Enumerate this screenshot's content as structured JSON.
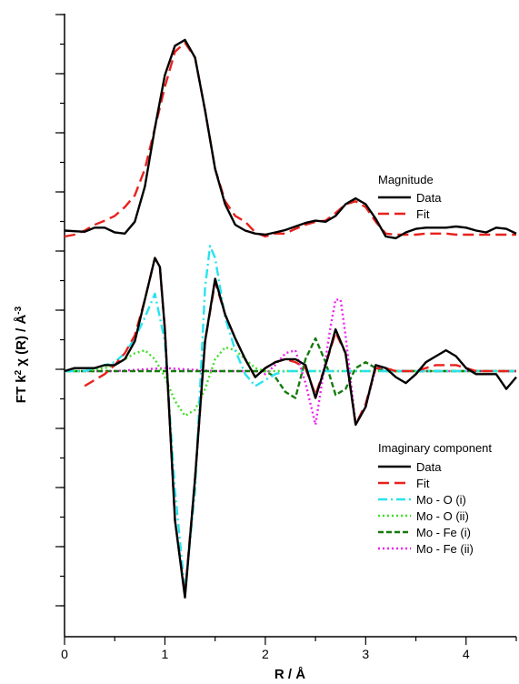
{
  "chart_data": {
    "type": "line",
    "xlabel": "R / Å",
    "ylabel_parts": {
      "main": "FT k",
      "sup": "2",
      "rest": " χ  (R) / Å",
      "sup2": "-3"
    },
    "xlim": [
      0,
      4.5
    ],
    "xticks": [
      0,
      1,
      2,
      3,
      4
    ],
    "y_has_tick_labels": false,
    "magnitude": {
      "title": "Magnitude",
      "series": [
        {
          "name": "Data",
          "color": "#000000",
          "dash": "solid",
          "x": [
            0,
            0.1,
            0.2,
            0.3,
            0.4,
            0.5,
            0.6,
            0.7,
            0.8,
            0.9,
            1.0,
            1.1,
            1.2,
            1.3,
            1.4,
            1.5,
            1.6,
            1.7,
            1.8,
            1.9,
            2.0,
            2.1,
            2.2,
            2.3,
            2.4,
            2.5,
            2.6,
            2.7,
            2.8,
            2.9,
            3.0,
            3.1,
            3.2,
            3.3,
            3.4,
            3.5,
            3.6,
            3.7,
            3.8,
            3.9,
            4.0,
            4.1,
            4.2,
            4.3,
            4.4,
            4.5
          ],
          "y": [
            0.55,
            0.54,
            0.53,
            0.6,
            0.6,
            0.52,
            0.5,
            0.7,
            1.3,
            2.3,
            3.2,
            3.7,
            3.8,
            3.5,
            2.6,
            1.6,
            1.0,
            0.65,
            0.55,
            0.5,
            0.48,
            0.52,
            0.56,
            0.62,
            0.68,
            0.72,
            0.7,
            0.8,
            1.0,
            1.1,
            1.0,
            0.75,
            0.45,
            0.42,
            0.52,
            0.58,
            0.6,
            0.6,
            0.6,
            0.62,
            0.6,
            0.55,
            0.52,
            0.6,
            0.58,
            0.5
          ]
        },
        {
          "name": "Fit",
          "color": "#e8211d",
          "dash": "long",
          "x": [
            0,
            0.1,
            0.2,
            0.3,
            0.4,
            0.5,
            0.6,
            0.7,
            0.8,
            0.9,
            1.0,
            1.1,
            1.2,
            1.3,
            1.4,
            1.5,
            1.6,
            1.7,
            1.8,
            1.9,
            2.0,
            2.1,
            2.2,
            2.3,
            2.4,
            2.5,
            2.6,
            2.7,
            2.8,
            2.9,
            3.0,
            3.1,
            3.2,
            3.3,
            3.4,
            3.5,
            3.6,
            3.7,
            3.8,
            3.9,
            4.0,
            4.1,
            4.2,
            4.3,
            4.4,
            4.5
          ],
          "y": [
            0.45,
            0.48,
            0.55,
            0.65,
            0.72,
            0.8,
            0.95,
            1.15,
            1.6,
            2.3,
            3.0,
            3.6,
            3.75,
            3.5,
            2.6,
            1.6,
            1.05,
            0.8,
            0.7,
            0.52,
            0.45,
            0.5,
            0.5,
            0.58,
            0.65,
            0.7,
            0.72,
            0.85,
            1.0,
            1.05,
            0.95,
            0.7,
            0.5,
            0.48,
            0.48,
            0.48,
            0.5,
            0.5,
            0.5,
            0.48,
            0.48,
            0.48,
            0.48,
            0.48,
            0.48,
            0.48
          ]
        }
      ]
    },
    "imaginary": {
      "title": "Imaginary component",
      "series": [
        {
          "name": "Data",
          "color": "#000000",
          "dash": "solid",
          "x": [
            0,
            0.1,
            0.2,
            0.3,
            0.4,
            0.5,
            0.6,
            0.7,
            0.8,
            0.9,
            0.95,
            1.0,
            1.1,
            1.2,
            1.3,
            1.4,
            1.5,
            1.6,
            1.7,
            1.8,
            1.9,
            2.0,
            2.1,
            2.2,
            2.3,
            2.4,
            2.5,
            2.6,
            2.7,
            2.8,
            2.9,
            3.0,
            3.1,
            3.2,
            3.3,
            3.4,
            3.5,
            3.6,
            3.7,
            3.8,
            3.9,
            4.0,
            4.1,
            4.2,
            4.3,
            4.4,
            4.5
          ],
          "y": [
            0,
            0.05,
            0.05,
            0.05,
            0.1,
            0.1,
            0.2,
            0.5,
            1.2,
            1.9,
            1.75,
            0.7,
            -2.5,
            -3.8,
            -1.8,
            0.5,
            1.55,
            0.95,
            0.55,
            0.2,
            -0.1,
            0.05,
            0.15,
            0.2,
            0.2,
            0.1,
            -0.45,
            0.1,
            0.7,
            0.3,
            -0.9,
            -0.6,
            0.1,
            0.05,
            -0.1,
            -0.2,
            -0.05,
            0.15,
            0.25,
            0.35,
            0.25,
            0.05,
            -0.05,
            -0.05,
            -0.05,
            -0.3,
            -0.1
          ]
        },
        {
          "name": "Fit",
          "color": "#e8211d",
          "dash": "long",
          "x": [
            0.2,
            0.3,
            0.4,
            0.5,
            0.6,
            0.7,
            0.8,
            0.9,
            0.95,
            1.0,
            1.1,
            1.2,
            1.3,
            1.4,
            1.5,
            1.6,
            1.7,
            1.8,
            1.9,
            2.0,
            2.1,
            2.2,
            2.3,
            2.4,
            2.5,
            2.6,
            2.7,
            2.8,
            2.9,
            3.0,
            3.1,
            3.2,
            3.3,
            3.4,
            3.5,
            3.6,
            3.7,
            3.8,
            3.9,
            4.0,
            4.1,
            4.2,
            4.3,
            4.4,
            4.5
          ],
          "y": [
            -0.25,
            -0.15,
            -0.05,
            0.1,
            0.3,
            0.6,
            1.2,
            1.9,
            1.75,
            0.7,
            -2.5,
            -3.75,
            -1.8,
            0.5,
            1.5,
            0.95,
            0.55,
            0.2,
            -0.1,
            0.05,
            0.15,
            0.2,
            0.15,
            0.05,
            -0.4,
            0.1,
            0.65,
            0.3,
            -0.9,
            -0.55,
            0.05,
            0.05,
            0,
            0,
            0,
            0.05,
            0.1,
            0.1,
            0.1,
            0.05,
            0,
            0,
            0,
            0,
            0
          ]
        },
        {
          "name": "Mo - O (i)",
          "color": "#27e3ee",
          "dash": "dashdot",
          "x": [
            0,
            0.2,
            0.4,
            0.5,
            0.6,
            0.7,
            0.8,
            0.9,
            1.0,
            1.1,
            1.2,
            1.3,
            1.4,
            1.45,
            1.5,
            1.6,
            1.7,
            1.8,
            1.9,
            2.0,
            2.1,
            2.2,
            2.4,
            2.6,
            2.8,
            3.0,
            3.2,
            3.4,
            3.6,
            3.8,
            4.0,
            4.2,
            4.5
          ],
          "y": [
            0,
            0,
            0.1,
            0.15,
            0.3,
            0.55,
            0.9,
            1.3,
            0.5,
            -2.0,
            -3.7,
            -2.0,
            1.4,
            2.1,
            1.9,
            0.9,
            0.35,
            -0.05,
            -0.25,
            -0.15,
            -0.05,
            0,
            0,
            0,
            0,
            0,
            0,
            0,
            0,
            0,
            0,
            0,
            0
          ]
        },
        {
          "name": "Mo - O (ii)",
          "color": "#3fe025",
          "dash": "dotted",
          "x": [
            0,
            0.2,
            0.4,
            0.5,
            0.6,
            0.7,
            0.8,
            0.9,
            1.0,
            1.1,
            1.2,
            1.3,
            1.4,
            1.5,
            1.6,
            1.7,
            1.8,
            1.9,
            2.0,
            2.1,
            2.2,
            2.4,
            2.6,
            2.8,
            3.0,
            3.2,
            3.4,
            3.6,
            3.8,
            4.0,
            4.2,
            4.5
          ],
          "y": [
            0,
            0,
            0.05,
            0.1,
            0.2,
            0.3,
            0.35,
            0.2,
            -0.1,
            -0.5,
            -0.75,
            -0.65,
            -0.3,
            0.2,
            0.4,
            0.35,
            0.2,
            0.05,
            0,
            0,
            0,
            0,
            0,
            0,
            0,
            0,
            0,
            0,
            0,
            0,
            0,
            0
          ]
        },
        {
          "name": "Mo - Fe (i)",
          "color": "#167a10",
          "dash": "dashed",
          "x": [
            0,
            0.5,
            1.0,
            1.5,
            1.8,
            2.0,
            2.1,
            2.2,
            2.3,
            2.4,
            2.5,
            2.6,
            2.7,
            2.8,
            2.9,
            3.0,
            3.1,
            3.2,
            3.3,
            3.5,
            4.0,
            4.5
          ],
          "y": [
            0,
            0,
            0,
            0,
            0,
            0,
            -0.1,
            -0.35,
            -0.45,
            0.2,
            0.55,
            0.15,
            -0.4,
            -0.3,
            0.05,
            0.15,
            0.05,
            0,
            0,
            0,
            0,
            0
          ]
        },
        {
          "name": "Mo - Fe (ii)",
          "color": "#ee21ee",
          "dash": "dotted",
          "x": [
            0,
            0.5,
            1.0,
            1.5,
            1.8,
            1.9,
            2.0,
            2.1,
            2.2,
            2.3,
            2.4,
            2.5,
            2.6,
            2.65,
            2.7,
            2.75,
            2.8,
            2.9,
            3.0,
            3.1,
            3.2,
            3.3,
            3.5,
            4.0,
            4.5
          ],
          "y": [
            0,
            0,
            0.05,
            0,
            0,
            0,
            -0.05,
            0.1,
            0.3,
            0.35,
            -0.2,
            -0.9,
            0.2,
            0.75,
            1.2,
            1.2,
            0.6,
            -0.9,
            -0.6,
            0.05,
            0.05,
            0,
            0,
            0,
            0
          ]
        }
      ]
    }
  }
}
